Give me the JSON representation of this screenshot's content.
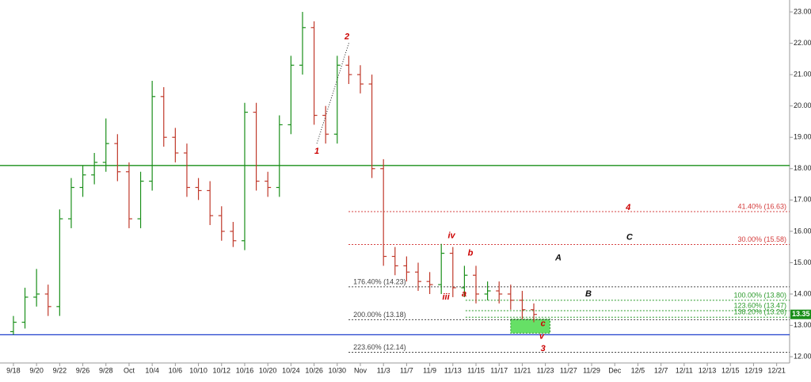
{
  "chart_data": {
    "type": "ohlc",
    "up_color": "#1a8f1a",
    "down_color": "#c0392b",
    "x": [
      0,
      0.5,
      1,
      1.5,
      2,
      2.5,
      3,
      3.5,
      4,
      4.5,
      5,
      5.5,
      6,
      6.5,
      7,
      7.5,
      8,
      8.5,
      9,
      9.5,
      10,
      10.5,
      11,
      11.5,
      12,
      12.5,
      13,
      13.5,
      14,
      14.5,
      15,
      15.5,
      16,
      16.5,
      17,
      17.5,
      18,
      18.5,
      19,
      19.5,
      20,
      20.5,
      21,
      21.5,
      22,
      22.5
    ],
    "open": [
      12.8,
      13.1,
      13.9,
      14.0,
      13.6,
      16.4,
      17.4,
      17.8,
      18.2,
      18.8,
      17.9,
      16.4,
      17.6,
      20.3,
      19.0,
      18.5,
      17.4,
      17.3,
      16.5,
      16.0,
      15.7,
      19.8,
      17.6,
      17.4,
      19.4,
      21.3,
      22.5,
      19.7,
      19.1,
      21.3,
      21.0,
      20.7,
      18.0,
      15.2,
      14.9,
      14.7,
      14.4,
      14.3,
      15.3,
      14.2,
      14.6,
      14.0,
      14.1,
      14.0,
      13.8,
      13.5
    ],
    "high": [
      13.3,
      14.2,
      14.8,
      14.3,
      16.7,
      17.7,
      18.1,
      18.5,
      19.6,
      19.1,
      18.2,
      17.9,
      20.8,
      20.6,
      19.3,
      18.8,
      17.7,
      17.6,
      16.8,
      16.3,
      20.1,
      20.1,
      17.9,
      19.7,
      21.6,
      23.0,
      22.7,
      20.0,
      21.6,
      21.6,
      21.3,
      21.0,
      18.3,
      15.5,
      15.2,
      15.0,
      14.7,
      15.6,
      15.5,
      14.9,
      14.9,
      14.4,
      14.4,
      14.3,
      14.1,
      13.7
    ],
    "low": [
      12.7,
      12.9,
      13.6,
      13.3,
      13.3,
      16.1,
      17.1,
      17.5,
      17.9,
      17.6,
      16.1,
      16.1,
      17.3,
      18.7,
      18.2,
      17.1,
      17.0,
      16.2,
      15.7,
      15.5,
      15.4,
      17.3,
      17.1,
      17.1,
      19.1,
      21.0,
      19.4,
      18.8,
      18.8,
      20.7,
      20.4,
      17.7,
      14.9,
      14.6,
      14.4,
      14.1,
      14.0,
      14.0,
      13.9,
      13.9,
      13.7,
      13.8,
      13.7,
      13.5,
      13.2,
      13.1
    ],
    "close": [
      13.1,
      13.9,
      14.0,
      13.6,
      16.4,
      17.4,
      17.8,
      18.2,
      18.8,
      17.9,
      16.4,
      17.6,
      20.3,
      19.0,
      18.5,
      17.4,
      17.3,
      16.5,
      16.0,
      15.7,
      19.8,
      17.6,
      17.4,
      19.4,
      21.3,
      22.5,
      19.7,
      19.1,
      21.3,
      21.0,
      20.7,
      18.0,
      15.2,
      14.9,
      14.7,
      14.4,
      14.3,
      15.3,
      14.2,
      14.6,
      14.0,
      14.1,
      14.0,
      13.8,
      13.5,
      13.35
    ],
    "last_price": 13.35,
    "last_price_label": "13.35",
    "xlim": [
      -0.58,
      33.56
    ],
    "xticks": [
      {
        "value": 0,
        "label": "9/18"
      },
      {
        "value": 1,
        "label": "9/20"
      },
      {
        "value": 2,
        "label": "9/22"
      },
      {
        "value": 3,
        "label": "9/26"
      },
      {
        "value": 4,
        "label": "9/28"
      },
      {
        "value": 5,
        "label": "Oct"
      },
      {
        "value": 6,
        "label": "10/4"
      },
      {
        "value": 7,
        "label": "10/6"
      },
      {
        "value": 8,
        "label": "10/10"
      },
      {
        "value": 9,
        "label": "10/12"
      },
      {
        "value": 10,
        "label": "10/16"
      },
      {
        "value": 11,
        "label": "10/20"
      },
      {
        "value": 12,
        "label": "10/24"
      },
      {
        "value": 13,
        "label": "10/26"
      },
      {
        "value": 14,
        "label": "10/30"
      },
      {
        "value": 15,
        "label": "Nov"
      },
      {
        "value": 16,
        "label": "11/3"
      },
      {
        "value": 17,
        "label": "11/7"
      },
      {
        "value": 18,
        "label": "11/9"
      },
      {
        "value": 19,
        "label": "11/13"
      },
      {
        "value": 20,
        "label": "11/15"
      },
      {
        "value": 21,
        "label": "11/17"
      },
      {
        "value": 22,
        "label": "11/21"
      },
      {
        "value": 23,
        "label": "11/23"
      },
      {
        "value": 24,
        "label": "11/27"
      },
      {
        "value": 25,
        "label": "11/29"
      },
      {
        "value": 26,
        "label": "Dec"
      },
      {
        "value": 27,
        "label": "12/5"
      },
      {
        "value": 28,
        "label": "12/7"
      },
      {
        "value": 29,
        "label": "12/11"
      },
      {
        "value": 30,
        "label": "12/13"
      },
      {
        "value": 31,
        "label": "12/15"
      },
      {
        "value": 32,
        "label": "12/19"
      },
      {
        "value": 33,
        "label": "12/21"
      }
    ],
    "ylim": [
      11.8,
      23.38
    ],
    "yticks": [
      {
        "value": 12,
        "label": "12.00"
      },
      {
        "value": 13,
        "label": "13.00"
      },
      {
        "value": 14,
        "label": "14.00"
      },
      {
        "value": 15,
        "label": "15.00"
      },
      {
        "value": 16,
        "label": "16.00"
      },
      {
        "value": 17,
        "label": "17.00"
      },
      {
        "value": 18,
        "label": "18.00"
      },
      {
        "value": 19,
        "label": "19.00"
      },
      {
        "value": 20,
        "label": "20.00"
      },
      {
        "value": 21,
        "label": "21.00"
      },
      {
        "value": 22,
        "label": "22.00"
      },
      {
        "value": 23,
        "label": "23.00"
      }
    ],
    "horizontal_lines": [
      {
        "value": 18.1,
        "color": "#1a8f1a"
      },
      {
        "value": 12.7,
        "color": "#1f3fcc"
      }
    ],
    "levels": [
      {
        "value": 16.63,
        "label": "41.40% (16.63)",
        "color": "#d43b3b",
        "from": 14.49,
        "label_pos": "end"
      },
      {
        "value": 15.58,
        "label": "30.00% (15.58)",
        "color": "#d43b3b",
        "from": 14.49,
        "label_pos": "end"
      },
      {
        "value": 14.23,
        "label": "176.40% (14.23)",
        "color": "#444444",
        "from": 14.49,
        "label_pos": "start"
      },
      {
        "value": 13.8,
        "label": "100.00% (13.80)",
        "color": "#2a9a2a",
        "from": 19.55,
        "label_pos": "end"
      },
      {
        "value": 13.47,
        "label": "123.60% (13.47)",
        "color": "#2a9a2a",
        "from": 19.55,
        "label_pos": "end"
      },
      {
        "value": 13.26,
        "label": "138.20% (13.26)",
        "color": "#2a9a2a",
        "from": 19.55,
        "label_pos": "end"
      },
      {
        "value": 13.18,
        "label": "200.00% (13.18)",
        "color": "#444444",
        "from": 14.49,
        "label_pos": "start"
      },
      {
        "value": 12.14,
        "label": "223.60% (12.14)",
        "color": "#444444",
        "from": 14.49,
        "label_pos": "start"
      }
    ],
    "zone": {
      "x": [
        21.5,
        23.2
      ],
      "y": [
        12.75,
        13.2
      ],
      "color": "#66e066"
    },
    "trendline": {
      "x": [
        13.12,
        14.52
      ],
      "y": [
        18.8,
        22.05
      ]
    },
    "annotations": [
      {
        "text": "1",
        "x": 13.12,
        "y": 18.55,
        "color": "#cc0000"
      },
      {
        "text": "2",
        "x": 14.42,
        "y": 22.2,
        "color": "#cc0000"
      },
      {
        "text": "iii",
        "x": 18.7,
        "y": 13.9,
        "color": "#cc0000"
      },
      {
        "text": "iv",
        "x": 18.94,
        "y": 15.85,
        "color": "#cc0000"
      },
      {
        "text": "a",
        "x": 19.49,
        "y": 14.0,
        "color": "#cc0000"
      },
      {
        "text": "b",
        "x": 19.76,
        "y": 15.3,
        "color": "#cc0000"
      },
      {
        "text": "c",
        "x": 22.9,
        "y": 13.05,
        "color": "#cc0000"
      },
      {
        "text": "v",
        "x": 22.84,
        "y": 12.65,
        "color": "#cc0000"
      },
      {
        "text": "3",
        "x": 22.9,
        "y": 12.25,
        "color": "#cc0000"
      },
      {
        "text": "4",
        "x": 26.58,
        "y": 16.75,
        "color": "#cc0000"
      },
      {
        "text": "C",
        "x": 26.64,
        "y": 15.8,
        "color": "#111111"
      },
      {
        "text": "A",
        "x": 23.56,
        "y": 15.15,
        "color": "#111111"
      },
      {
        "text": "B",
        "x": 24.86,
        "y": 14.0,
        "color": "#111111"
      }
    ]
  }
}
